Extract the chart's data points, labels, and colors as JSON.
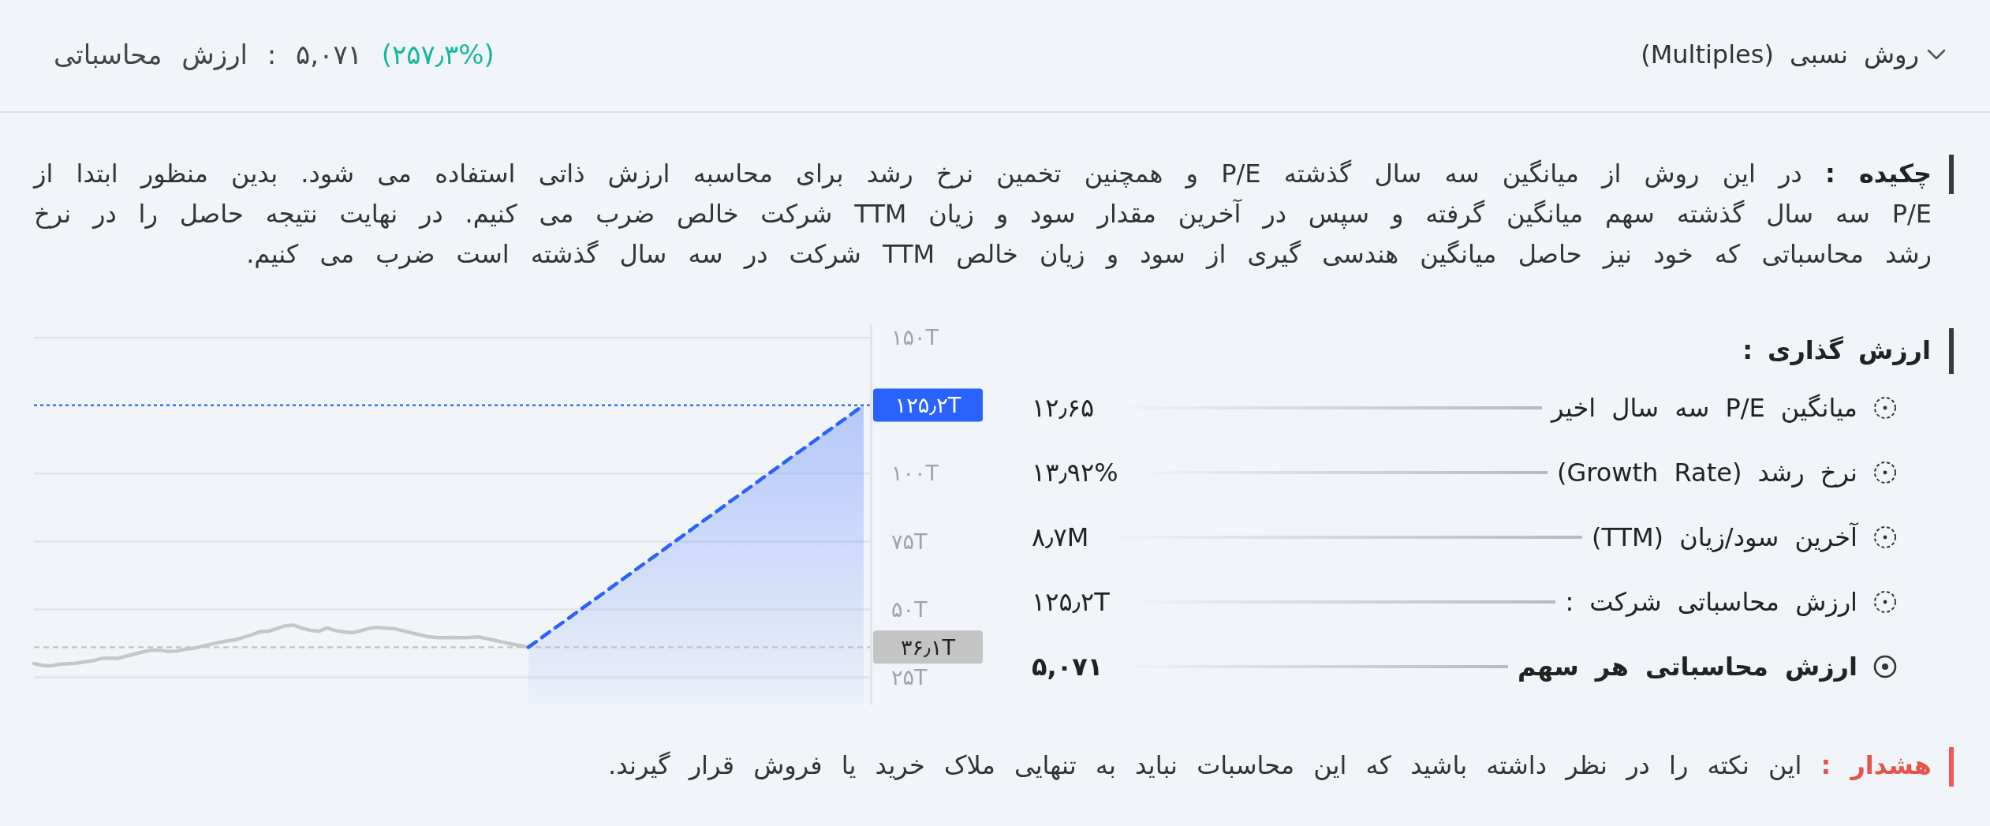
{
  "chart_data": {
    "type": "area",
    "title": "روش نسبی (Multiples)",
    "subtitle": "ارزش محاسباتی : ۵,۰۷۱ (۲۵۷٫۳%)",
    "annotations": [
      "چکیده : در این روش از میانگین سه سال گذشته P/E و همچنین تخمین نرخ رشد برای محاسبه ارزش ذاتی استفاده می شود. بدین منظور ابتدا از P/E سه سال گذشته سهم میانگین گرفته و سپس در آخرین مقدار سود و زیان TTM شرکت خالص ضرب می کنیم. در نهایت نتیجه حاصل را در نرخ رشد محاسباتی که خود نیز حاصل میانگین هندسی گیری از سود و زیان خالص TTM شرکت در سه سال گذشته است ضرب می کنیم.",
      "ارزش گذاری :",
      "میانگین P/E سه سال اخیر",
      "۱۲٫۶۵",
      "نرخ رشد (Growth Rate)",
      "۱۳٫۹۲%",
      "آخرین سود/زیان (TTM)",
      "۸٫۷M",
      "ارزش محاسباتی شرکت :",
      "۱۲۵٫۲T",
      "ارزش محاسباتی هر سهم",
      "۵,۰۷۱",
      "هشدار : این نکته را در نظر داشته باشید که این محاسبات نباید به تنهایی ملاک خرید یا فروش قرار گیرند."
    ],
    "categories": [
      null,
      null,
      null,
      null,
      null,
      null,
      null,
      null,
      null,
      null,
      null,
      null,
      null,
      null,
      null,
      null,
      null,
      null,
      null,
      null,
      null,
      null,
      null,
      null,
      null,
      null,
      null,
      null,
      null,
      null,
      null,
      null,
      null,
      null,
      null,
      null,
      null,
      null,
      null,
      null,
      null,
      null,
      null,
      null,
      null,
      null,
      null,
      null,
      null,
      null,
      null,
      null,
      null,
      null,
      null,
      null,
      null,
      null,
      null,
      null,
      null,
      null,
      null,
      null,
      null,
      null,
      null,
      null,
      null,
      null,
      null,
      null,
      null,
      null,
      null,
      null,
      null,
      null,
      null,
      null,
      null,
      null,
      null,
      null,
      null,
      null,
      null,
      null,
      null,
      null,
      null,
      null,
      null,
      null,
      null,
      null,
      null,
      null,
      null,
      null
    ],
    "series": [
      {
        "type": "line",
        "color": "#c6c6c6",
        "values": [
          30.1,
          29.4,
          29.2,
          29.8,
          30.0,
          30.2,
          30.7,
          31.1,
          31.9,
          32.1,
          32.0,
          32.8,
          33.6,
          34.4,
          35.0,
          35.0,
          34.5,
          34.7,
          35.3,
          35.7,
          36.4,
          37.1,
          37.8,
          38.4,
          38.8,
          39.7,
          40.7,
          41.8,
          42.0,
          43.0,
          44.0,
          44.2,
          43.1,
          42.3,
          42.0,
          43.2,
          42.2,
          41.7,
          41.4,
          42.2,
          43.0,
          43.4,
          43.1,
          42.9,
          42.2,
          41.4,
          40.7,
          40.0,
          39.7,
          39.6,
          39.7,
          39.6,
          39.7,
          39.9,
          39.3,
          38.6,
          37.9,
          37.3,
          36.7,
          36.1,
          null,
          null,
          null,
          null,
          null,
          null,
          null,
          null,
          null,
          null,
          null,
          null,
          null,
          null,
          null,
          null,
          null,
          null,
          null,
          null,
          null,
          null,
          null,
          null,
          null,
          null,
          null,
          null,
          null,
          null,
          null,
          null,
          null,
          null,
          null,
          null,
          null,
          null,
          null,
          null
        ]
      },
      {
        "color": "#2962ff",
        "line_style": "dashed",
        "values": [
          null,
          null,
          null,
          null,
          null,
          null,
          null,
          null,
          null,
          null,
          null,
          null,
          null,
          null,
          null,
          null,
          null,
          null,
          null,
          null,
          null,
          null,
          null,
          null,
          null,
          null,
          null,
          null,
          null,
          null,
          null,
          null,
          null,
          null,
          null,
          null,
          null,
          null,
          null,
          null,
          null,
          null,
          null,
          null,
          null,
          null,
          null,
          null,
          null,
          null,
          null,
          null,
          null,
          null,
          null,
          null,
          null,
          null,
          null,
          36.1,
          38.3,
          40.6,
          42.8,
          45.0,
          47.2,
          49.5,
          51.7,
          53.9,
          56.1,
          58.4,
          60.6,
          62.8,
          65.1,
          67.3,
          69.5,
          71.7,
          74.0,
          76.2,
          78.4,
          80.7,
          82.9,
          85.1,
          87.3,
          89.6,
          91.8,
          94.0,
          96.2,
          98.5,
          100.7,
          102.9,
          105.2,
          107.4,
          109.6,
          111.8,
          114.1,
          116.3,
          118.5,
          120.7,
          123.0,
          125.2
        ]
      }
    ],
    "ylim": [
      15,
      155
    ],
    "yticks": [
      {
        "value": 25,
        "label": "۲۵T"
      },
      {
        "value": 50,
        "label": "۵۰T"
      },
      {
        "value": 75,
        "label": "۷۵T"
      },
      {
        "value": 100,
        "label": "۱۰۰T"
      },
      {
        "value": 150,
        "label": "۱۵۰T"
      }
    ],
    "ref_lines": [
      {
        "axis": "y",
        "value": 125.2,
        "label": "۱۲۵٫۲T",
        "color": "#2962ff",
        "line_style": "dotted"
      },
      {
        "axis": "y",
        "value": 36.1,
        "label": "۳۶٫۱T",
        "color": "#c4c4c4",
        "line_style": "dashed"
      }
    ],
    "grid": "y",
    "tick_labels": "y"
  }
}
